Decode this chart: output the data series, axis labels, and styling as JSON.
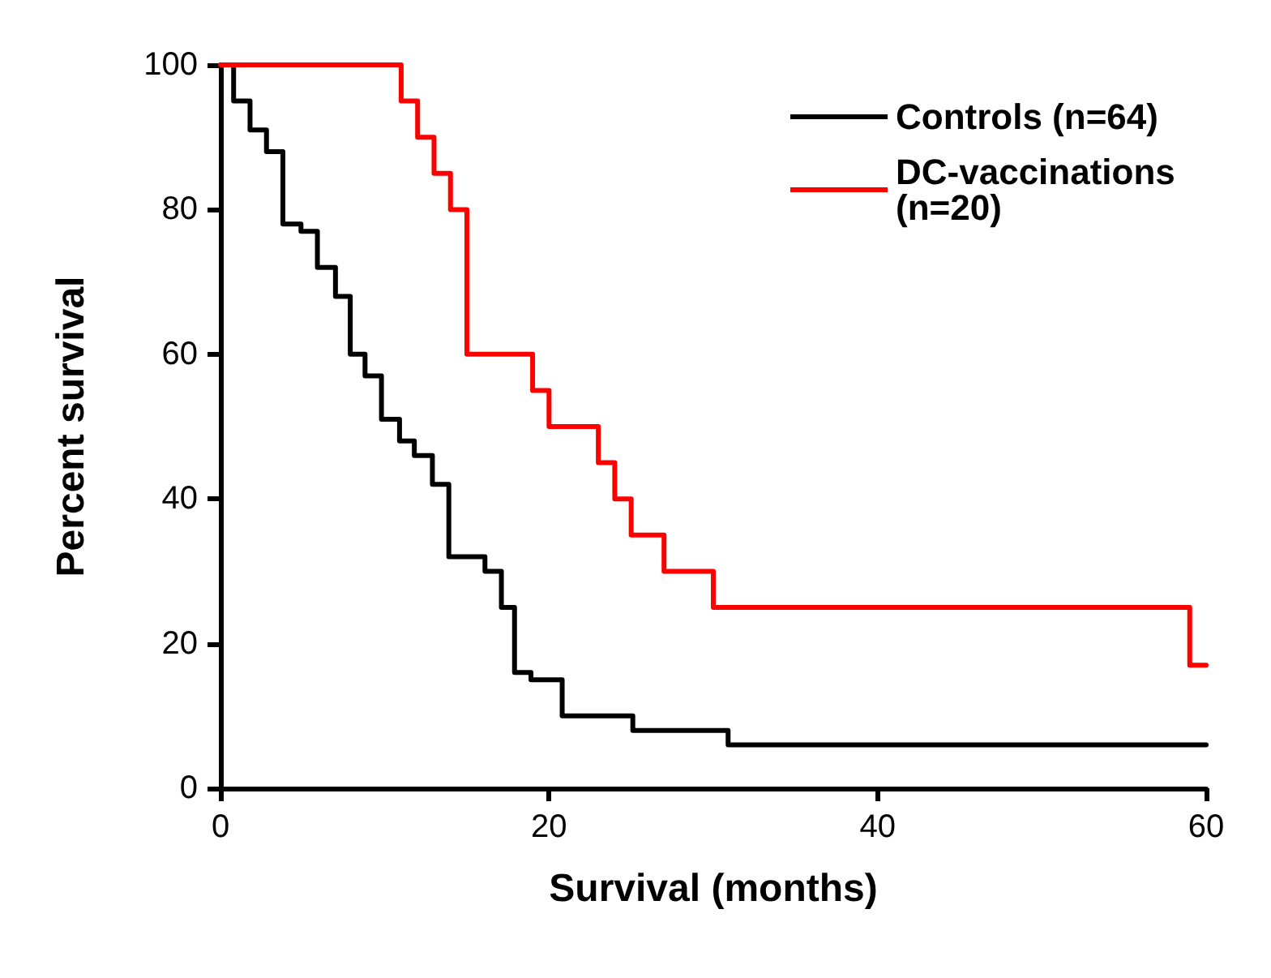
{
  "chart_data": {
    "type": "step",
    "xlabel": "Survival (months)",
    "ylabel": "Percent survival",
    "xlim": [
      0,
      60
    ],
    "xticks": [
      0,
      20,
      40,
      60
    ],
    "ylim": [
      0,
      100
    ],
    "yticks": [
      0,
      20,
      40,
      60,
      80,
      100
    ],
    "grid": false,
    "legend": "top right",
    "marker": "none",
    "line_style": "solid",
    "series": [
      {
        "name": "Controls (n=64)",
        "color": "#000000",
        "x": [
          0,
          0.8,
          1.8,
          2.8,
          3.8,
          4.9,
          5.9,
          7,
          7.9,
          8.8,
          9.8,
          10.9,
          11.8,
          12.9,
          13.9,
          16.1,
          17.1,
          17.9,
          18.9,
          20.8,
          25.1,
          30.9,
          60
        ],
        "values": [
          100,
          95,
          91,
          88,
          78,
          77,
          72,
          68,
          60,
          57,
          51,
          48,
          46,
          42,
          32,
          30,
          25,
          16,
          15,
          10,
          8,
          6,
          6
        ]
      },
      {
        "name": "DC-vaccinations (n=20)",
        "color": "#ff0000",
        "x": [
          0,
          11,
          12,
          13,
          14,
          15,
          19,
          20,
          23,
          24,
          25,
          27,
          30,
          59,
          60
        ],
        "values": [
          100,
          95,
          90,
          85,
          80,
          60,
          55,
          50,
          45,
          40,
          35,
          30,
          25,
          17,
          17
        ]
      }
    ]
  }
}
